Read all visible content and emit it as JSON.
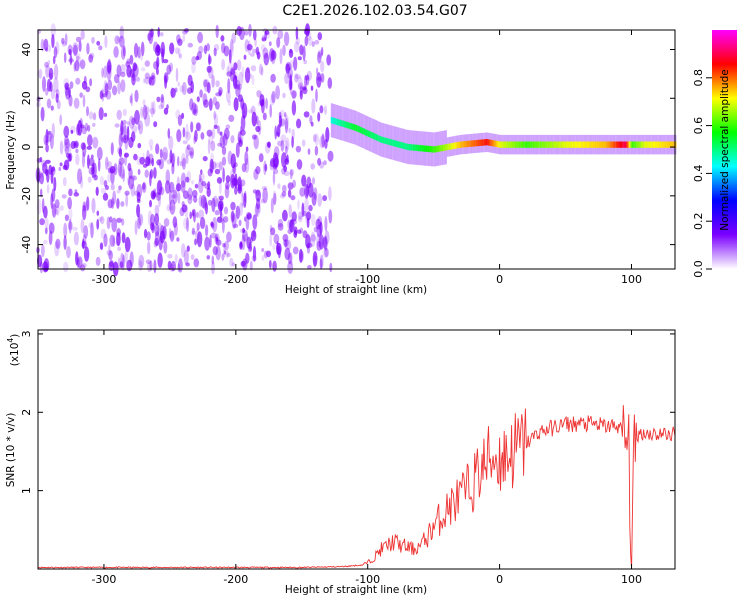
{
  "title": "C2E1.2026.102.03.54.G07",
  "chart_data": [
    {
      "type": "heatmap",
      "name": "spectrogram",
      "xlabel": "Height of straight line (km)",
      "ylabel": "Frequency (Hz)",
      "xlim": [
        -350,
        133
      ],
      "ylim": [
        -50,
        48
      ],
      "xticks": [
        -300,
        -200,
        -100,
        0,
        100
      ],
      "xtick_labels": [
        "-300",
        "-200",
        "-100",
        "0",
        "100"
      ],
      "yticks": [
        -40,
        -20,
        0,
        20,
        40
      ],
      "ytick_labels": [
        "-40",
        "-20",
        "0",
        "20",
        "40"
      ],
      "colorbar": {
        "label": "Normalized spectral amplitude",
        "range": [
          0,
          1
        ],
        "ticks": [
          0.0,
          0.2,
          0.4,
          0.6,
          0.8
        ],
        "tick_labels": [
          "0.0",
          "0.2",
          "0.4",
          "0.6",
          "0.8"
        ],
        "colors": [
          "#ffffff",
          "#7b00ff",
          "#0000ff",
          "#00ffff",
          "#00ff00",
          "#ffff00",
          "#ff0000",
          "#ff00ff"
        ]
      },
      "noise_region": {
        "x_from": -350,
        "x_to": -128,
        "amplitude": "low",
        "color": "#7b00ff"
      },
      "signal_track": {
        "x": [
          -128,
          -110,
          -90,
          -70,
          -50,
          -30,
          -10,
          0,
          20,
          50,
          80,
          95,
          100,
          110,
          133
        ],
        "frequency": [
          11,
          8,
          3,
          0,
          -1,
          1,
          2,
          1,
          1,
          1,
          1,
          1,
          1,
          1,
          1
        ],
        "amplitude": [
          0.45,
          0.55,
          0.5,
          0.5,
          0.6,
          0.75,
          0.85,
          0.7,
          0.6,
          0.7,
          0.75,
          0.9,
          0.6,
          0.7,
          0.75
        ]
      }
    },
    {
      "type": "line",
      "name": "snr",
      "xlabel": "Height of straight line (km)",
      "ylabel": "SNR (10 * v/v)",
      "y_multiplier_label": "(x10",
      "y_multiplier_exp": "4",
      "y_multiplier_close": ")",
      "xlim": [
        -350,
        133
      ],
      "ylim": [
        0,
        3.05
      ],
      "xticks": [
        -300,
        -200,
        -100,
        0,
        100
      ],
      "xtick_labels": [
        "-300",
        "-200",
        "-100",
        "0",
        "100"
      ],
      "yticks": [
        1,
        2,
        3
      ],
      "ytick_labels": [
        "1",
        "2",
        "3"
      ],
      "color": "#ee3333",
      "series": [
        {
          "x": [
            -350,
            -300,
            -250,
            -200,
            -150,
            -120,
            -105,
            -100,
            -95,
            -90,
            -85,
            -80,
            -75,
            -70,
            -65,
            -60,
            -55,
            -50,
            -45,
            -40,
            -35,
            -30,
            -25,
            -20,
            -15,
            -10,
            -5,
            0,
            5,
            10,
            20,
            30,
            40,
            50,
            60,
            70,
            80,
            90,
            95,
            98,
            100,
            102,
            105,
            110,
            120,
            133
          ],
          "y": [
            0.02,
            0.02,
            0.02,
            0.02,
            0.02,
            0.03,
            0.05,
            0.08,
            0.15,
            0.25,
            0.3,
            0.35,
            0.3,
            0.28,
            0.25,
            0.3,
            0.4,
            0.55,
            0.65,
            0.75,
            0.85,
            0.9,
            1.0,
            1.1,
            1.25,
            1.35,
            1.45,
            1.4,
            1.45,
            1.5,
            1.6,
            1.75,
            1.8,
            1.85,
            1.85,
            1.85,
            1.82,
            1.83,
            1.7,
            1.5,
            0.1,
            1.5,
            1.72,
            1.74,
            1.72,
            1.72
          ]
        }
      ]
    }
  ]
}
